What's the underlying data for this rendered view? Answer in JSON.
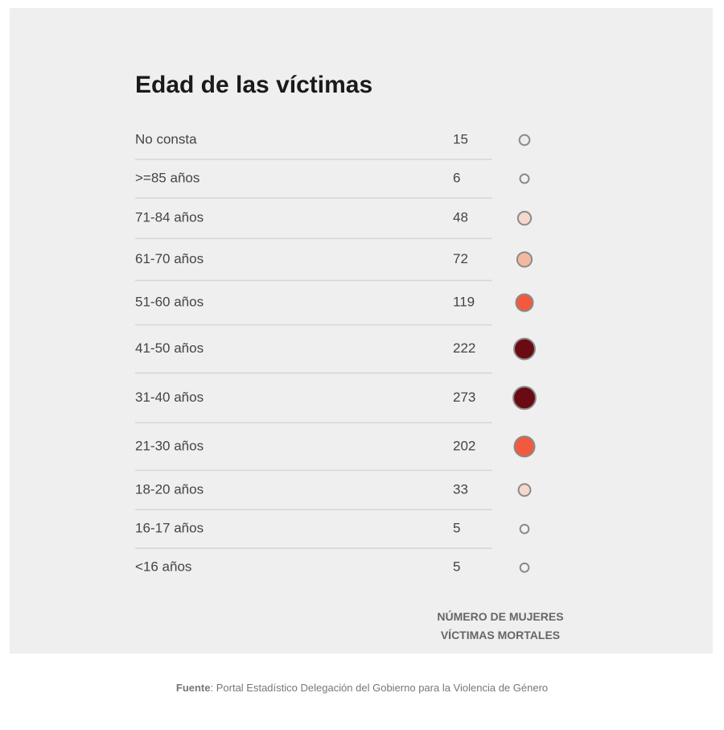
{
  "chart_data": {
    "type": "dot-table",
    "title": "Edad de las víctimas",
    "categories": [
      "No consta",
      ">=85 años",
      "71-84 años",
      "61-70 años",
      "51-60 años",
      "41-50 años",
      "31-40 años",
      "21-30 años",
      "18-20 años",
      "16-17 años",
      "<16 años"
    ],
    "values": [
      15,
      6,
      48,
      72,
      119,
      222,
      273,
      202,
      33,
      5,
      5
    ],
    "colors": [
      "#efebe8",
      "#f4f2f0",
      "#f6d8cc",
      "#f3b8a0",
      "#f25a40",
      "#6a0a12",
      "#6a0a12",
      "#f25a40",
      "#f6d8cc",
      "#f4f2f0",
      "#f4f2f0"
    ],
    "value_axis_label": "NÚMERO DE MUJERES VÍCTIMAS MORTALES",
    "source": {
      "label": "Fuente",
      "text": ": Portal Estadístico Delegación del Gobierno para la Violencia de Género"
    }
  }
}
